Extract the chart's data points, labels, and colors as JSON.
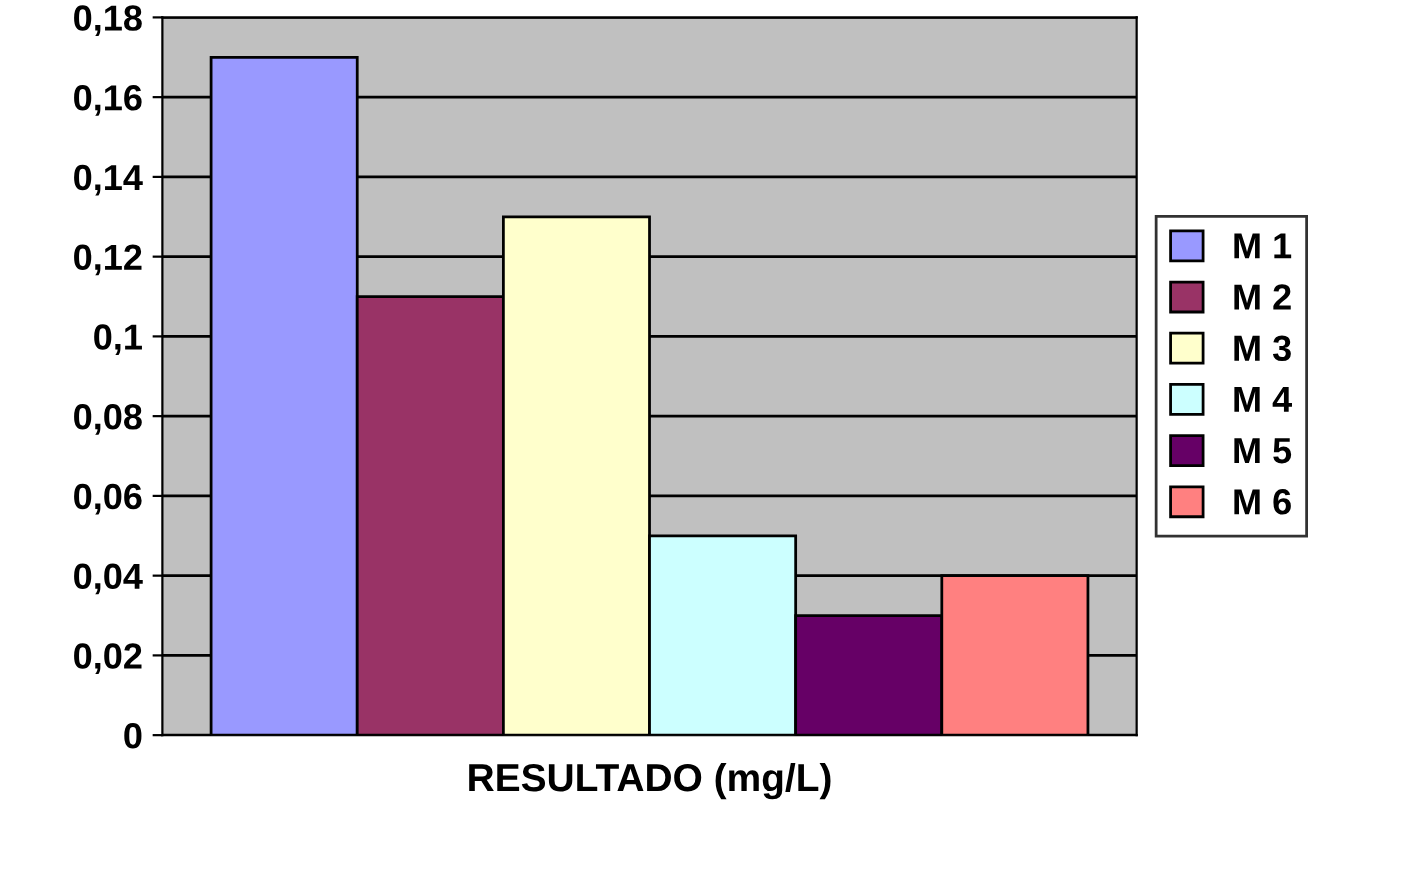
{
  "chart_data": {
    "type": "bar",
    "categories": [
      "RESULTADO (mg/L)"
    ],
    "series": [
      {
        "name": "M 1",
        "color": "#9999ff",
        "values": [
          0.17
        ]
      },
      {
        "name": "M 2",
        "color": "#993366",
        "values": [
          0.11
        ]
      },
      {
        "name": "M 3",
        "color": "#ffffcc",
        "values": [
          0.13
        ]
      },
      {
        "name": "M 4",
        "color": "#ccffff",
        "values": [
          0.05
        ]
      },
      {
        "name": "M 5",
        "color": "#660066",
        "values": [
          0.03
        ]
      },
      {
        "name": "M 6",
        "color": "#ff8080",
        "values": [
          0.04
        ]
      }
    ],
    "ylim": [
      0,
      0.18
    ],
    "yticks": [
      0,
      {
        "value": 0.02,
        "label": "0,02"
      },
      {
        "value": 0.04,
        "label": "0,04"
      },
      {
        "value": 0.06,
        "label": "0,06"
      },
      {
        "value": 0.08,
        "label": "0,08"
      },
      {
        "value": 0.1,
        "label": "0,1"
      },
      {
        "value": 0.12,
        "label": "0,12"
      },
      {
        "value": 0.14,
        "label": "0,14"
      },
      {
        "value": 0.16,
        "label": "0,16"
      },
      {
        "value": 0.18,
        "label": "0,18"
      }
    ],
    "grid": "y",
    "legend": "right"
  }
}
